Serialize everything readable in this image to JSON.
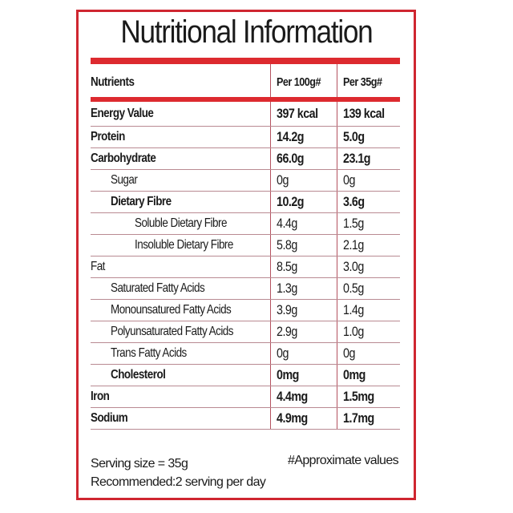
{
  "title": "Nutritional Information",
  "headers": {
    "nutrient": "Nutrients",
    "per100": "Per 100g#",
    "per35": "Per 35g#"
  },
  "rows": [
    {
      "name": "Energy Value",
      "per100": "397 kcal",
      "per35": "139 kcal",
      "bold": true,
      "indent": 0
    },
    {
      "name": "Protein",
      "per100": "14.2g",
      "per35": "5.0g",
      "bold": true,
      "indent": 0
    },
    {
      "name": "Carbohydrate",
      "per100": "66.0g",
      "per35": "23.1g",
      "bold": true,
      "indent": 0
    },
    {
      "name": "Sugar",
      "per100": "0g",
      "per35": "0g",
      "bold": false,
      "indent": 1
    },
    {
      "name": "Dietary Fibre",
      "per100": "10.2g",
      "per35": "3.6g",
      "bold": true,
      "indent": 1
    },
    {
      "name": "Soluble Dietary Fibre",
      "per100": "4.4g",
      "per35": "1.5g",
      "bold": false,
      "indent": 2
    },
    {
      "name": "Insoluble Dietary Fibre",
      "per100": "5.8g",
      "per35": "2.1g",
      "bold": false,
      "indent": 2
    },
    {
      "name": "Fat",
      "per100": "8.5g",
      "per35": "3.0g",
      "bold": false,
      "indent": 0
    },
    {
      "name": "Saturated Fatty Acids",
      "per100": "1.3g",
      "per35": "0.5g",
      "bold": false,
      "indent": 1
    },
    {
      "name": "Monounsatured Fatty Acids",
      "per100": "3.9g",
      "per35": "1.4g",
      "bold": false,
      "indent": 1
    },
    {
      "name": "Polyunsaturated Fatty Acids",
      "per100": "2.9g",
      "per35": "1.0g",
      "bold": false,
      "indent": 1
    },
    {
      "name": "Trans Fatty Acids",
      "per100": "0g",
      "per35": "0g",
      "bold": false,
      "indent": 1
    },
    {
      "name": "Cholesterol",
      "per100": "0mg",
      "per35": "0mg",
      "bold": true,
      "indent": 1
    },
    {
      "name": "Iron",
      "per100": "4.4mg",
      "per35": "1.5mg",
      "bold": true,
      "indent": 0
    },
    {
      "name": "Sodium",
      "per100": "4.9mg",
      "per35": "1.7mg",
      "bold": true,
      "indent": 0
    }
  ],
  "footer": {
    "serving": "Serving size = 35g",
    "recommended": "Recommended:2 serving per day",
    "note": "#Approximate values"
  },
  "colors": {
    "accent": "#dd2a2f",
    "border": "#cf2630"
  }
}
